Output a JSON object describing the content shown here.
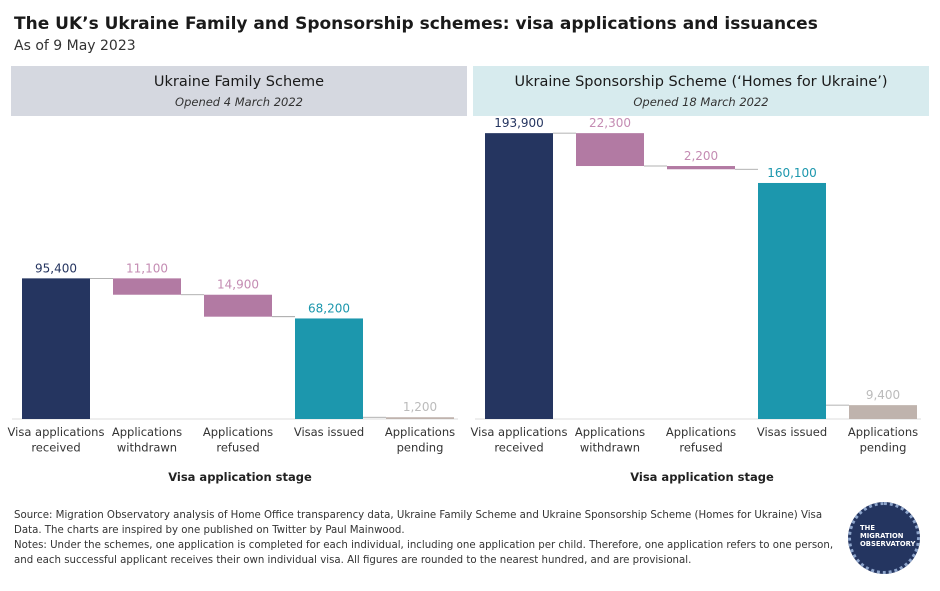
{
  "title": "The UK’s Ukraine Family and Sponsorship schemes: visa applications and issuances",
  "subtitle": "As of 9 May 2023",
  "colors": {
    "navy": "#253560",
    "purple": "#b27aa3",
    "purple_light": "#c48cb3",
    "teal": "#1c97ad",
    "grey": "#bfb3ad",
    "label_light": "#bbbbbb",
    "connector": "#999999"
  },
  "chart_data": [
    {
      "type": "waterfall",
      "title": "Ukraine Family Scheme",
      "subtitle": "Opened 4 March 2022",
      "xlabel": "Visa application stage",
      "ylabel": "",
      "ylim": [
        0,
        200000
      ],
      "categories": [
        "Visa applications received",
        "Applications withdrawn",
        "Applications refused",
        "Visas issued",
        "Applications pending"
      ],
      "category_lines": [
        [
          "Visa applications",
          "received"
        ],
        [
          "Applications",
          "withdrawn"
        ],
        [
          "Applications",
          "refused"
        ],
        [
          "Visas issued"
        ],
        [
          "Applications",
          "pending"
        ]
      ],
      "values": [
        95400,
        11100,
        14900,
        68200,
        1200
      ],
      "labels": [
        "95,400",
        "11,100",
        "14,900",
        "68,200",
        "1,200"
      ]
    },
    {
      "type": "waterfall",
      "title": "Ukraine Sponsorship Scheme (‘Homes for Ukraine’)",
      "subtitle": "Opened 18 March 2022",
      "xlabel": "Visa application stage",
      "ylabel": "",
      "ylim": [
        0,
        200000
      ],
      "categories": [
        "Visa applications received",
        "Applications withdrawn",
        "Applications refused",
        "Visas issued",
        "Applications pending"
      ],
      "category_lines": [
        [
          "Visa applications",
          "received"
        ],
        [
          "Applications",
          "withdrawn"
        ],
        [
          "Applications",
          "refused"
        ],
        [
          "Visas issued"
        ],
        [
          "Applications",
          "pending"
        ]
      ],
      "values": [
        193900,
        22300,
        2200,
        160100,
        9400
      ],
      "labels": [
        "193,900",
        "22,300",
        "2,200",
        "160,100",
        "9,400"
      ]
    }
  ],
  "footer": {
    "source": "Source: Migration Observatory analysis of Home Office transparency data, Ukraine Family Scheme and Ukraine Sponsorship Scheme (Homes for Ukraine) Visa Data. The charts are inspired by one published on Twitter by Paul Mainwood.",
    "notes": "Notes: Under the schemes, one application is completed for each individual, including one application per child. Therefore, one application refers to one person, and each successful applicant receives their own individual visa. All figures are rounded to the nearest hundred, and are provisional."
  },
  "logo": {
    "line1": "THE",
    "line2": "MIGRATION",
    "line3": "OBSERVATORY"
  }
}
